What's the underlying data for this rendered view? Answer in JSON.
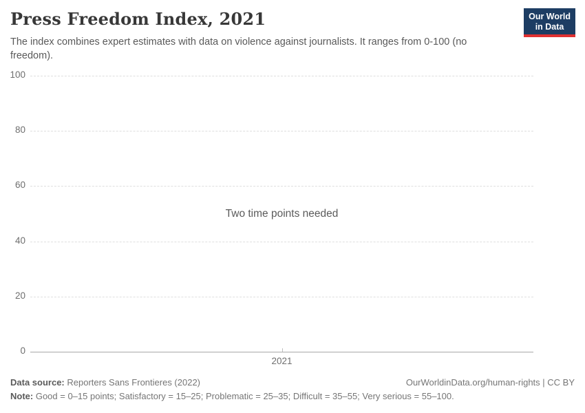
{
  "header": {
    "title": "Press Freedom Index, 2021",
    "subtitle": "The index combines expert estimates with data on violence against journalists. It ranges from 0-100 (no freedom).",
    "logo": {
      "line1": "Our World",
      "line2": "in Data"
    }
  },
  "chart_data": {
    "type": "line",
    "title": "Press Freedom Index, 2021",
    "series": [],
    "message": "Two time points needed",
    "x_tick_labels": [
      "2021"
    ],
    "y_ticks": [
      0,
      20,
      40,
      60,
      80,
      100
    ],
    "ylim": [
      0,
      100
    ],
    "grid": "horizontal-dashed",
    "legend": "none"
  },
  "footer": {
    "datasource_label": "Data source:",
    "datasource_value": " Reporters Sans Frontieres (2022)",
    "note_label": "Note:",
    "note_value": " Good = 0–15 points; Satisfactory = 15–25; Problematic = 25–35; Difficult = 35–55; Very serious = 55–100.",
    "link": "OurWorldinData.org/human-rights | CC BY"
  },
  "colors": {
    "logo_background": "#1d3d63",
    "logo_stripe": "#e03131",
    "gridline": "#dedede",
    "axis_line": "#a7a7a7",
    "text_muted": "#6e6e6e"
  }
}
